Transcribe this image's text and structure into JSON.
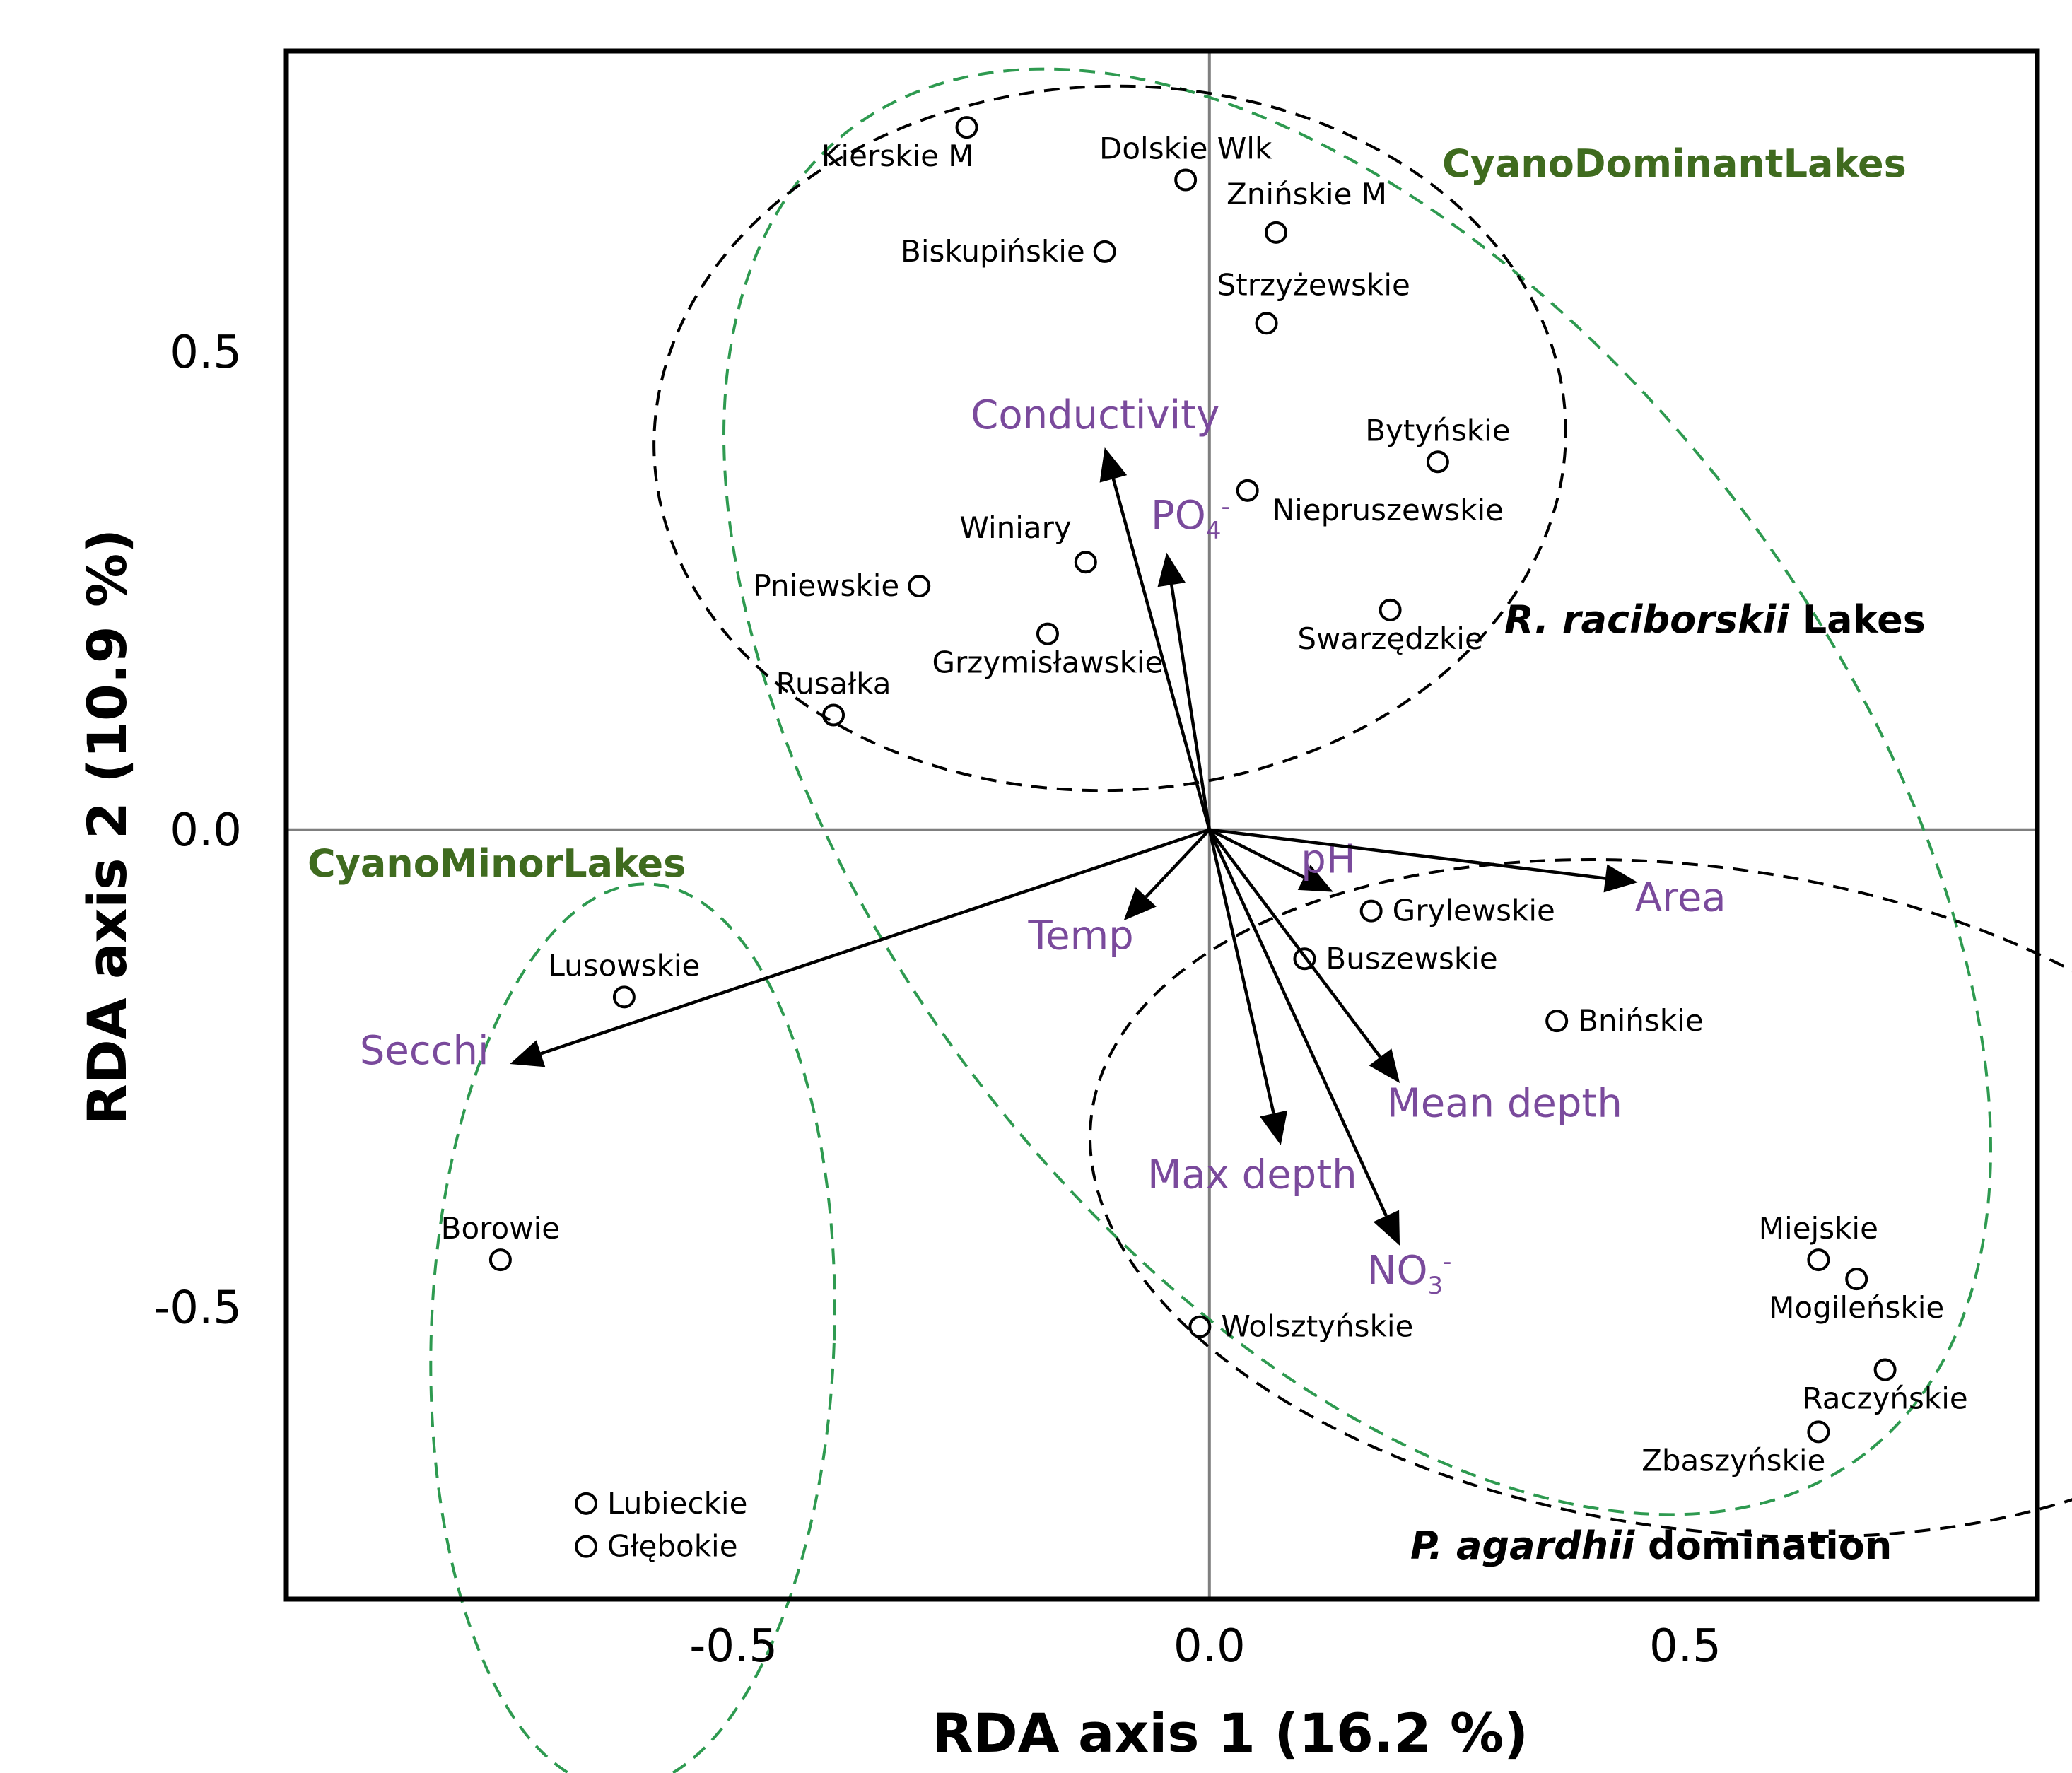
{
  "chart_data": {
    "type": "scatter",
    "subtype": "RDA biplot",
    "xlabel": "RDA axis 1 (16.2 %)",
    "ylabel": "RDA axis 2 (10.9 %)",
    "xlim": [
      -0.97,
      0.87
    ],
    "ylim": [
      -0.805,
      0.815
    ],
    "xticks": [
      -0.5,
      0.0,
      0.5
    ],
    "xtick_labels": [
      "-0.5",
      "0.0",
      "0.5"
    ],
    "yticks": [
      0.5,
      0.0,
      -0.5
    ],
    "ytick_labels": [
      "0.5",
      "0.0",
      "-0.5"
    ],
    "sites": [
      {
        "name": "Kierskie M",
        "x": -0.255,
        "y": 0.735,
        "label_pos": "below-left"
      },
      {
        "name": "Dolskie Wlk",
        "x": -0.025,
        "y": 0.68,
        "label_pos": "above"
      },
      {
        "name": "Znińskie M",
        "x": 0.07,
        "y": 0.625,
        "label_pos": "above-right"
      },
      {
        "name": "Biskupińskie",
        "x": -0.11,
        "y": 0.605,
        "label_pos": "left"
      },
      {
        "name": "Strzyżewskie",
        "x": 0.06,
        "y": 0.53,
        "label_pos": "above-right"
      },
      {
        "name": "Bytyńskie",
        "x": 0.24,
        "y": 0.385,
        "label_pos": "above"
      },
      {
        "name": "Niepruszewskie",
        "x": 0.04,
        "y": 0.355,
        "label_pos": "below-right"
      },
      {
        "name": "Winiary",
        "x": -0.13,
        "y": 0.28,
        "label_pos": "above-left"
      },
      {
        "name": "Pniewskie",
        "x": -0.305,
        "y": 0.255,
        "label_pos": "left"
      },
      {
        "name": "Swarzędzkie",
        "x": 0.19,
        "y": 0.23,
        "label_pos": "below"
      },
      {
        "name": "Grzymisławskie",
        "x": -0.17,
        "y": 0.205,
        "label_pos": "below"
      },
      {
        "name": "Rusałka",
        "x": -0.395,
        "y": 0.12,
        "label_pos": "above"
      },
      {
        "name": "Grylewskie",
        "x": 0.17,
        "y": -0.085,
        "label_pos": "right"
      },
      {
        "name": "Buszewskie",
        "x": 0.1,
        "y": -0.135,
        "label_pos": "right"
      },
      {
        "name": "Bnińskie",
        "x": 0.365,
        "y": -0.2,
        "label_pos": "right"
      },
      {
        "name": "Lusowskie",
        "x": -0.615,
        "y": -0.175,
        "label_pos": "above"
      },
      {
        "name": "Borowie",
        "x": -0.745,
        "y": -0.45,
        "label_pos": "above"
      },
      {
        "name": "Miejskie",
        "x": 0.64,
        "y": -0.45,
        "label_pos": "above"
      },
      {
        "name": "Mogileńskie",
        "x": 0.68,
        "y": -0.47,
        "label_pos": "below"
      },
      {
        "name": "Wolsztyńskie",
        "x": -0.01,
        "y": -0.52,
        "label_pos": "right"
      },
      {
        "name": "Raczyńskie",
        "x": 0.71,
        "y": -0.565,
        "label_pos": "below"
      },
      {
        "name": "Zbaszyńskie",
        "x": 0.64,
        "y": -0.63,
        "label_pos": "below-left"
      },
      {
        "name": "Lubieckie",
        "x": -0.655,
        "y": -0.705,
        "label_pos": "right"
      },
      {
        "name": "Głębokie",
        "x": -0.655,
        "y": -0.75,
        "label_pos": "right"
      }
    ],
    "vectors": [
      {
        "name": "Conductivity",
        "x": -0.11,
        "y": 0.4,
        "label_x": -0.12,
        "label_y": 0.42,
        "sub": ""
      },
      {
        "name": "PO",
        "sub": "4",
        "sup": "-",
        "x": -0.045,
        "y": 0.29,
        "label_x": -0.02,
        "label_y": 0.315
      },
      {
        "name": "pH",
        "x": 0.13,
        "y": -0.065,
        "label_x": 0.125,
        "label_y": -0.045,
        "sub": ""
      },
      {
        "name": "Area",
        "x": 0.45,
        "y": -0.055,
        "label_x": 0.495,
        "label_y": -0.085,
        "sub": ""
      },
      {
        "name": "Temp",
        "x": -0.09,
        "y": -0.095,
        "label_x": -0.135,
        "label_y": -0.125,
        "sub": ""
      },
      {
        "name": "Secchi",
        "x": -0.735,
        "y": -0.245,
        "label_x": -0.825,
        "label_y": -0.245,
        "sub": ""
      },
      {
        "name": "Mean depth",
        "x": 0.2,
        "y": -0.265,
        "label_x": 0.31,
        "label_y": -0.3,
        "sub": ""
      },
      {
        "name": "Max depth",
        "x": 0.075,
        "y": -0.33,
        "label_x": 0.045,
        "label_y": -0.375,
        "sub": ""
      },
      {
        "name": "NO",
        "sub": "3",
        "sup": "-",
        "x": 0.2,
        "y": -0.435,
        "label_x": 0.21,
        "label_y": -0.475
      }
    ],
    "groups": [
      {
        "name": "CyanoDominantLakes",
        "color": "#2e9a50",
        "style": "green",
        "italic_part": ""
      },
      {
        "name": "CyanoMinorLakes",
        "color": "#2e9a50",
        "style": "green",
        "italic_part": ""
      },
      {
        "name": " Lakes",
        "italic_part": "R. raciborskii",
        "color": "#000000",
        "style": "black"
      },
      {
        "name": " domination",
        "italic_part": "P. agardhii",
        "color": "#000000",
        "style": "black"
      }
    ]
  },
  "colors": {
    "vector_label": "#7a4a9c",
    "group_text_green": "#3f6b1f",
    "ellipse_green": "#2e9a50",
    "ellipse_black": "#000000",
    "zero_line": "#7f7f7f"
  }
}
